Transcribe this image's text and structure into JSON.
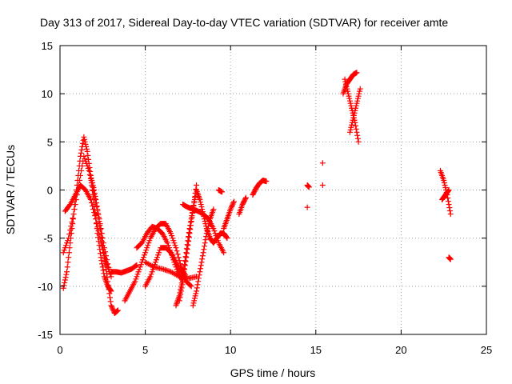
{
  "chart_data": {
    "type": "scatter",
    "title": "Day 313 of 2017, Sidereal Day-to-day VTEC variation (SDTVAR) for receiver amte",
    "xlabel": "GPS time / hours",
    "ylabel": "SDTVAR / TECUs",
    "xlim": [
      0,
      25
    ],
    "ylim": [
      -15,
      15
    ],
    "x_ticks": [
      0,
      5,
      10,
      15,
      20,
      25
    ],
    "y_ticks": [
      -15,
      -10,
      -5,
      0,
      5,
      10,
      15
    ],
    "x_tick_labels": [
      "0",
      "5",
      "10",
      "15",
      "20",
      "25"
    ],
    "y_tick_labels": [
      "-15",
      "-10",
      "-5",
      "0",
      "5",
      "10",
      "15"
    ],
    "grid": true,
    "marker": "+",
    "color": "#ff0000",
    "series": [
      {
        "x": [
          0.2,
          0.4,
          0.6,
          0.8,
          1.0,
          1.2,
          1.4,
          1.6,
          1.8,
          2.0,
          2.2,
          2.4,
          2.6,
          2.8,
          3.0
        ],
        "y": [
          -10.2,
          -8.5,
          -5.5,
          -2.5,
          0.5,
          3.5,
          5.5,
          4.0,
          1.5,
          -1.5,
          -4.5,
          -7.0,
          -9.0,
          -10.0,
          -10.5
        ]
      },
      {
        "x": [
          0.2,
          0.5,
          0.8,
          1.1,
          1.4,
          1.7,
          2.0,
          2.3,
          2.6,
          2.9
        ],
        "y": [
          -6.5,
          -5.0,
          -2.5,
          0.5,
          3.5,
          2.0,
          -0.5,
          -3.0,
          -6.0,
          -8.5
        ]
      },
      {
        "x": [
          0.3,
          0.6,
          0.9,
          1.2,
          1.5,
          1.8,
          2.1,
          2.4,
          2.7,
          3.0
        ],
        "y": [
          -2.2,
          -1.5,
          -0.5,
          0.5,
          0.0,
          -1.0,
          -3.0,
          -5.5,
          -7.5,
          -9.0
        ]
      },
      {
        "x": [
          1.8,
          2.0,
          2.2,
          2.4,
          2.6,
          2.8,
          3.0,
          3.2,
          3.4
        ],
        "y": [
          1.5,
          0.0,
          -2.0,
          -4.5,
          -7.0,
          -9.5,
          -12.0,
          -12.8,
          -12.5
        ]
      },
      {
        "x": [
          3.0,
          3.3,
          3.6,
          3.9,
          4.2,
          4.5
        ],
        "y": [
          -8.5,
          -8.5,
          -8.6,
          -8.4,
          -8.2,
          -7.8
        ]
      },
      {
        "x": [
          3.8,
          4.1,
          4.4,
          4.7,
          5.0,
          5.3,
          5.6,
          5.9,
          6.2,
          6.5,
          6.8,
          7.1,
          7.4
        ],
        "y": [
          -11.5,
          -10.5,
          -9.5,
          -8.0,
          -6.5,
          -5.0,
          -4.0,
          -3.5,
          -3.5,
          -4.5,
          -6.0,
          -8.0,
          -9.0
        ]
      },
      {
        "x": [
          4.5,
          4.8,
          5.1,
          5.4,
          5.7,
          6.0,
          6.3,
          6.6,
          6.9,
          7.2
        ],
        "y": [
          -6.0,
          -5.5,
          -4.5,
          -3.8,
          -4.0,
          -4.5,
          -5.5,
          -7.0,
          -8.5,
          -9.5
        ]
      },
      {
        "x": [
          5.0,
          5.3,
          5.6,
          5.9,
          6.2,
          6.5,
          6.8,
          7.1,
          7.4,
          7.7
        ],
        "y": [
          -10.0,
          -9.0,
          -7.5,
          -6.0,
          -6.0,
          -6.5,
          -7.5,
          -8.5,
          -9.5,
          -10.0
        ]
      },
      {
        "x": [
          5.0,
          5.5,
          6.0,
          6.5,
          7.0,
          7.5,
          8.0
        ],
        "y": [
          -7.5,
          -8.0,
          -8.2,
          -8.5,
          -9.0,
          -9.2,
          -9.0
        ]
      },
      {
        "x": [
          6.8,
          7.0,
          7.2,
          7.4,
          7.6,
          7.8,
          8.0
        ],
        "y": [
          -12.0,
          -11.0,
          -9.0,
          -6.5,
          -4.0,
          -2.0,
          0.5
        ]
      },
      {
        "x": [
          7.0,
          7.2,
          7.4,
          7.6,
          7.8,
          8.0,
          8.2,
          8.4,
          8.6,
          8.8,
          9.0,
          9.2,
          9.4,
          9.6,
          9.8
        ],
        "y": [
          -11.5,
          -9.5,
          -7.0,
          -4.5,
          -2.0,
          0.0,
          -1.0,
          -2.5,
          -4.0,
          -5.0,
          -5.5,
          -5.0,
          -4.5,
          -4.5,
          -5.0
        ]
      },
      {
        "x": [
          7.2,
          7.5,
          7.8,
          8.1,
          8.4,
          8.7,
          9.0,
          9.3,
          9.6
        ],
        "y": [
          -1.5,
          -1.8,
          -2.0,
          -2.2,
          -2.5,
          -3.0,
          -4.0,
          -5.5,
          -6.5
        ]
      },
      {
        "x": [
          7.8,
          8.0,
          8.2,
          8.4,
          8.6,
          8.8,
          9.0
        ],
        "y": [
          -12.0,
          -10.5,
          -8.5,
          -6.5,
          -4.5,
          -3.0,
          -2.0
        ]
      },
      {
        "x": [
          9.3,
          9.5
        ],
        "y": [
          0.0,
          -0.2
        ]
      },
      {
        "x": [
          9.6,
          9.8,
          10.0,
          10.2
        ],
        "y": [
          -4.0,
          -3.0,
          -2.0,
          -1.2
        ]
      },
      {
        "x": [
          10.5,
          10.7,
          10.9
        ],
        "y": [
          -2.5,
          -1.5,
          -0.8
        ]
      },
      {
        "x": [
          11.3,
          11.5,
          11.7,
          11.9,
          12.1
        ],
        "y": [
          -0.5,
          0.2,
          0.7,
          1.0,
          0.9
        ]
      },
      {
        "x": [
          14.5,
          14.6
        ],
        "y": [
          0.5,
          0.3
        ]
      },
      {
        "x": [
          14.5
        ],
        "y": [
          -1.8
        ]
      },
      {
        "x": [
          15.4
        ],
        "y": [
          2.8
        ]
      },
      {
        "x": [
          15.4
        ],
        "y": [
          0.5
        ]
      },
      {
        "x": [
          16.6,
          16.8,
          17.0,
          17.2,
          17.4
        ],
        "y": [
          10.0,
          11.0,
          11.5,
          12.0,
          12.2
        ]
      },
      {
        "x": [
          16.7,
          16.9,
          17.1,
          17.3,
          17.5
        ],
        "y": [
          11.5,
          10.0,
          8.5,
          7.0,
          5.0
        ]
      },
      {
        "x": [
          17.0,
          17.2,
          17.4,
          17.6
        ],
        "y": [
          6.0,
          7.5,
          9.0,
          10.5
        ]
      },
      {
        "x": [
          22.3,
          22.5,
          22.7,
          22.9
        ],
        "y": [
          2.0,
          1.0,
          -0.5,
          -2.5
        ]
      },
      {
        "x": [
          22.4,
          22.6,
          22.8
        ],
        "y": [
          -1.0,
          -0.5,
          0.0
        ]
      },
      {
        "x": [
          22.8,
          22.9
        ],
        "y": [
          -7.0,
          -7.2
        ]
      }
    ]
  }
}
